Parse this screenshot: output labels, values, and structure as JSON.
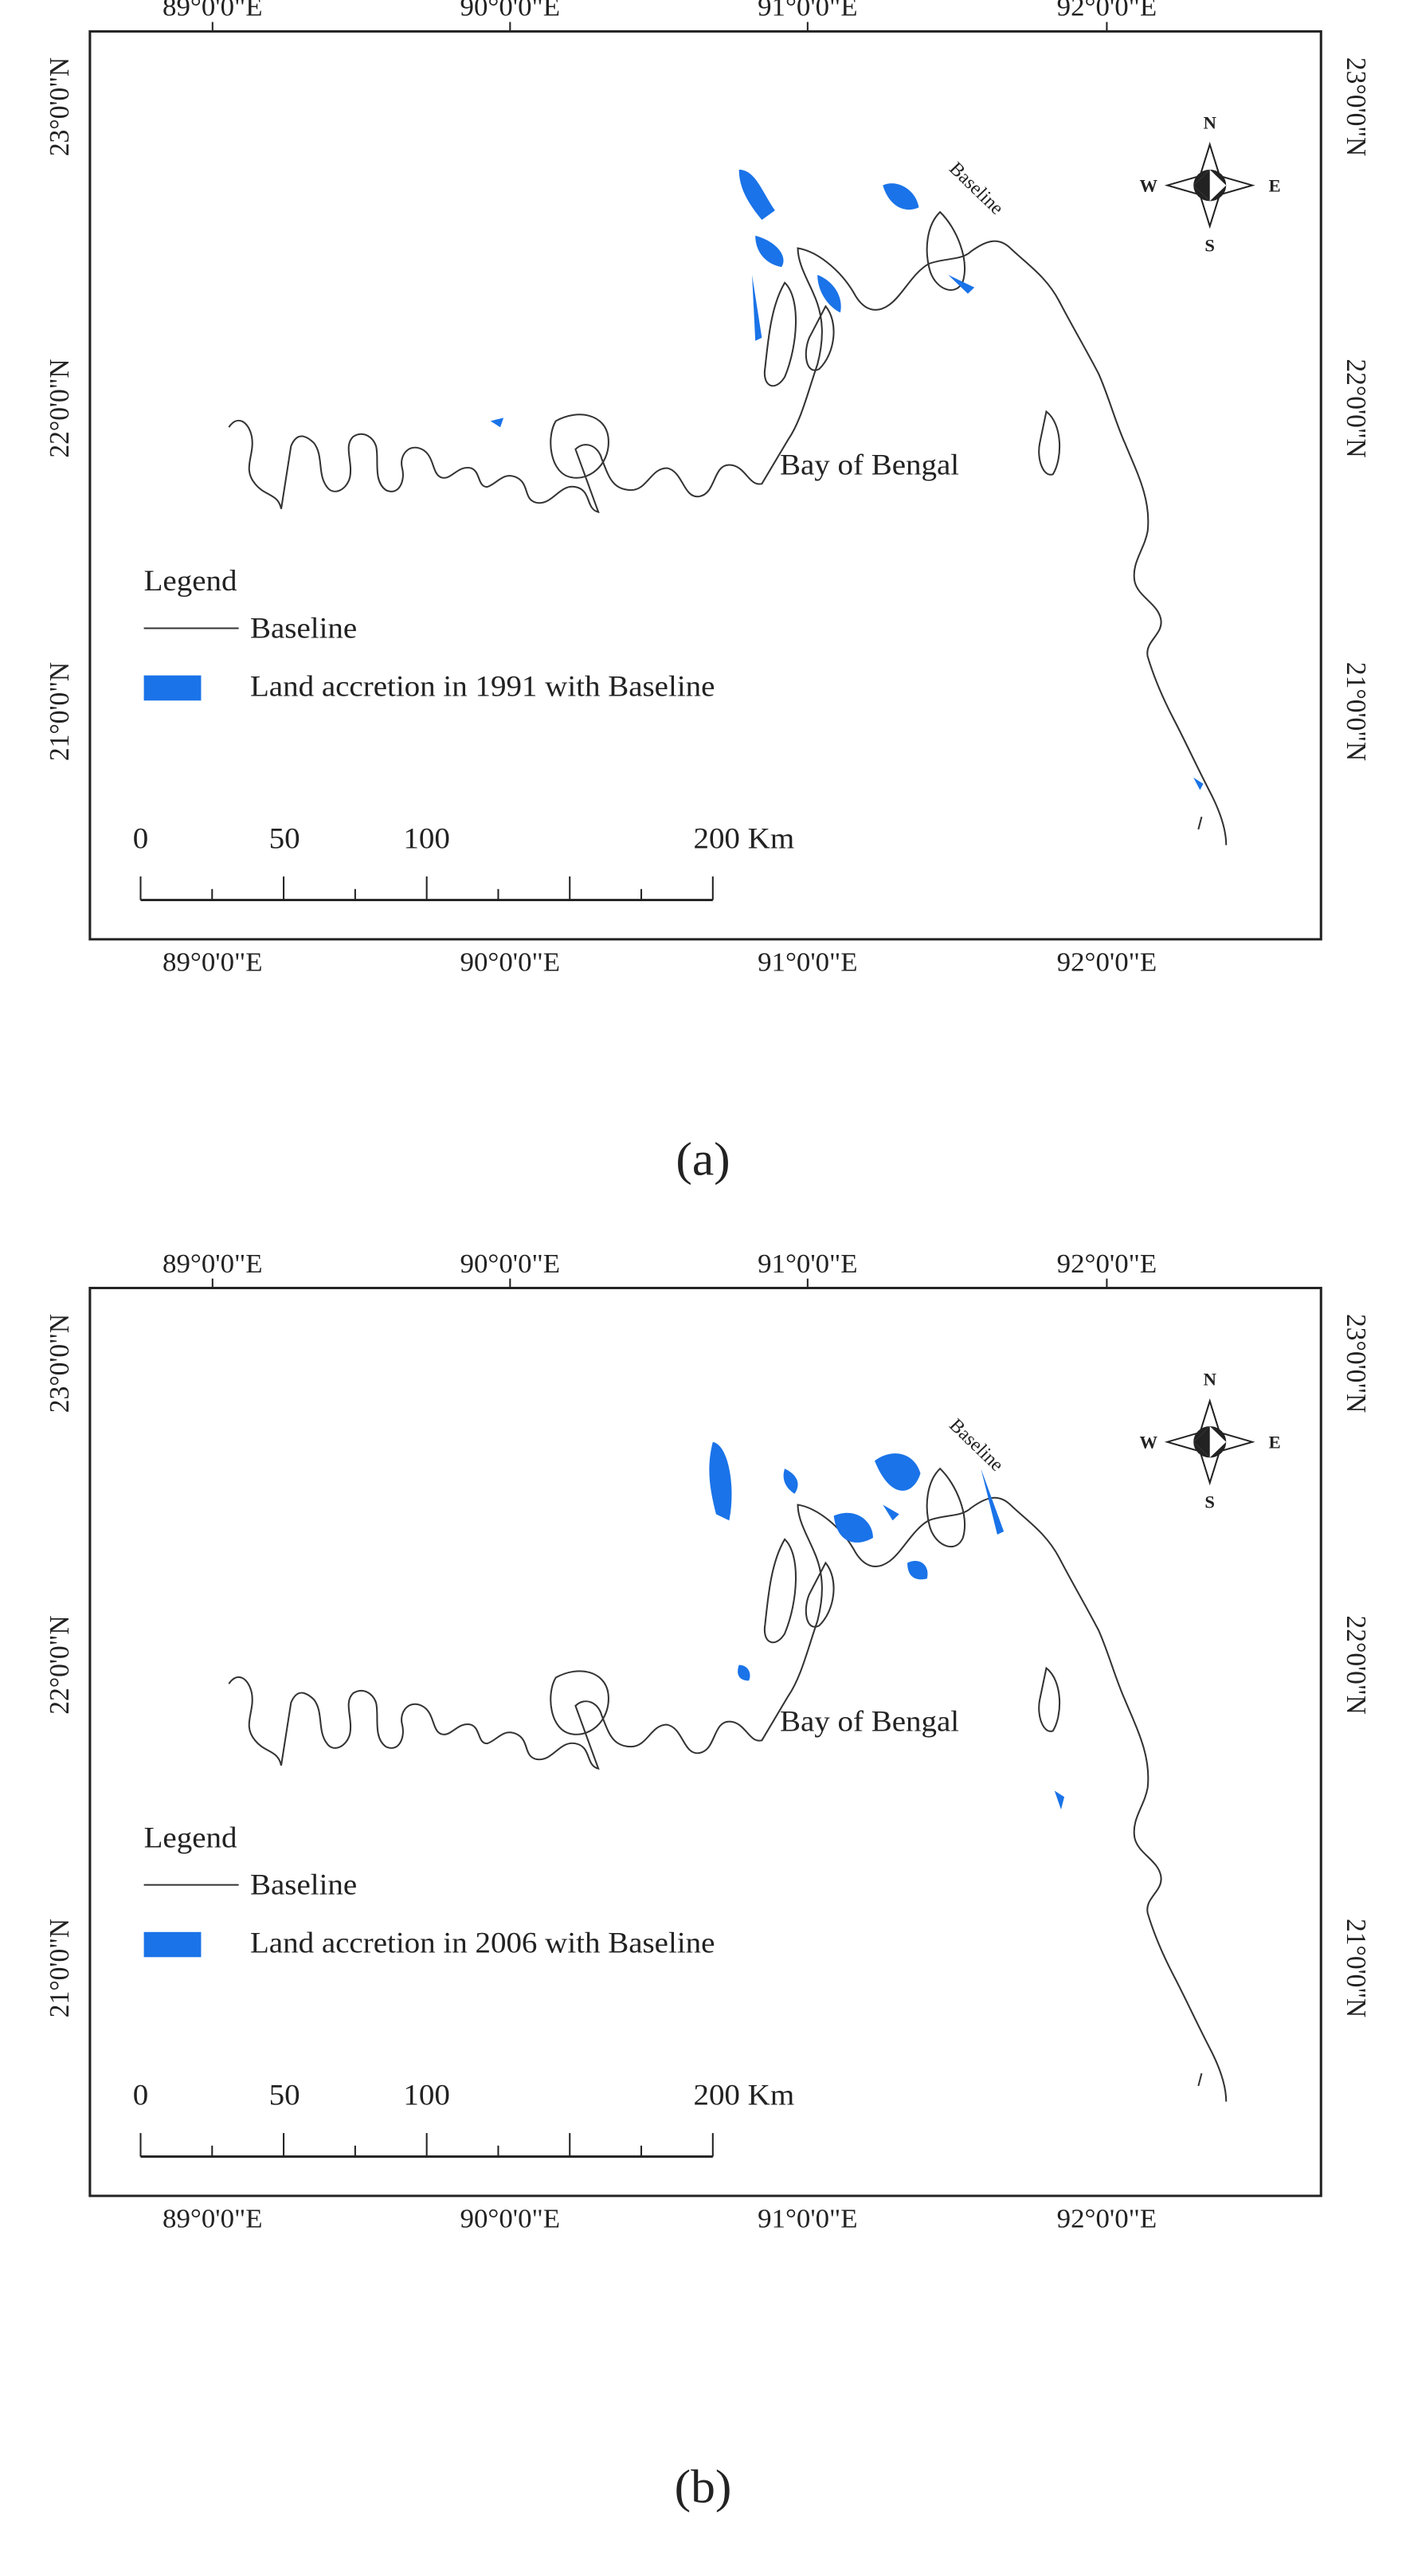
{
  "panels": [
    {
      "label": "(a)",
      "top_labels": [
        "89°0'0\"E",
        "90°0'0\"E",
        "91°0'0\"E",
        "92°0'0\"E"
      ],
      "bottom_labels": [
        "89°0'0\"E",
        "90°0'0\"E",
        "91°0'0\"E",
        "92°0'0\"E"
      ],
      "left_labels": [
        "23°0'0\"N",
        "22°0'0\"N",
        "21°0'0\"N"
      ],
      "right_labels": [
        "23°0'0\"N",
        "22°0'0\"N",
        "21°0'0\"N"
      ],
      "place_label": "Bay of Bengal",
      "baseline_label": "Baseline",
      "compass": {
        "n": "N",
        "s": "S",
        "e": "E",
        "w": "W"
      },
      "legend": {
        "title": "Legend",
        "items": [
          "Baseline",
          "Land accretion in 1991 with Baseline"
        ]
      },
      "scale_labels": [
        "0",
        "50",
        "100",
        "200 Km"
      ]
    },
    {
      "label": "(b)",
      "top_labels": [
        "89°0'0\"E",
        "90°0'0\"E",
        "91°0'0\"E",
        "92°0'0\"E"
      ],
      "bottom_labels": [
        "89°0'0\"E",
        "90°0'0\"E",
        "91°0'0\"E",
        "92°0'0\"E"
      ],
      "left_labels": [
        "23°0'0\"N",
        "22°0'0\"N",
        "21°0'0\"N"
      ],
      "right_labels": [
        "23°0'0\"N",
        "22°0'0\"N",
        "21°0'0\"N"
      ],
      "place_label": "Bay of Bengal",
      "baseline_label": "Baseline",
      "compass": {
        "n": "N",
        "s": "S",
        "e": "E",
        "w": "W"
      },
      "legend": {
        "title": "Legend",
        "items": [
          "Baseline",
          "Land accretion in 2006 with Baseline"
        ]
      },
      "scale_labels": [
        "0",
        "50",
        "100",
        "200 Km"
      ]
    }
  ]
}
